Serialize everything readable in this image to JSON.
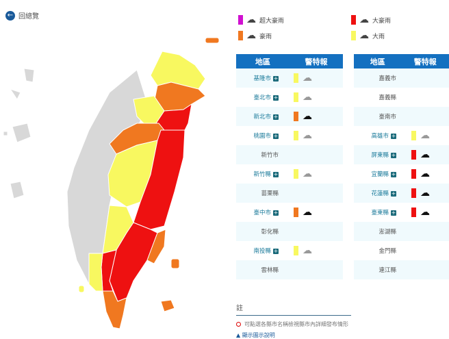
{
  "back_label": "回總覽",
  "colors": {
    "super_torrential": "#d010d0",
    "extremely_heavy": "#ee1111",
    "torrential": "#f07820",
    "heavy": "#f8f860",
    "none": "#d8d8d8",
    "header": "#1470c0"
  },
  "legend": [
    {
      "label": "超大豪雨",
      "level": "super_torrential",
      "icon": "dark-rain-cloud-icon"
    },
    {
      "label": "大豪雨",
      "level": "extremely_heavy",
      "icon": "dark-rain-cloud-icon"
    },
    {
      "label": "豪雨",
      "level": "torrential",
      "icon": "dark-rain-cloud-icon"
    },
    {
      "label": "大雨",
      "level": "heavy",
      "icon": "outline-rain-cloud-icon"
    }
  ],
  "table_headers": {
    "region": "地區",
    "warning": "警特報"
  },
  "left_table": [
    {
      "name": "基隆市",
      "level": "heavy"
    },
    {
      "name": "臺北市",
      "level": "heavy"
    },
    {
      "name": "新北市",
      "level": "torrential"
    },
    {
      "name": "桃園市",
      "level": "heavy"
    },
    {
      "name": "新竹市",
      "level": null
    },
    {
      "name": "新竹縣",
      "level": "heavy"
    },
    {
      "name": "苗栗縣",
      "level": null
    },
    {
      "name": "臺中市",
      "level": "torrential"
    },
    {
      "name": "彰化縣",
      "level": null
    },
    {
      "name": "南投縣",
      "level": "heavy"
    },
    {
      "name": "雲林縣",
      "level": null
    }
  ],
  "right_table": [
    {
      "name": "嘉義市",
      "level": null
    },
    {
      "name": "嘉義縣",
      "level": null
    },
    {
      "name": "臺南市",
      "level": null
    },
    {
      "name": "高雄市",
      "level": "heavy"
    },
    {
      "name": "屏東縣",
      "level": "extremely_heavy"
    },
    {
      "name": "宜蘭縣",
      "level": "extremely_heavy"
    },
    {
      "name": "花蓮縣",
      "level": "extremely_heavy"
    },
    {
      "name": "臺東縣",
      "level": "extremely_heavy"
    },
    {
      "name": "澎湖縣",
      "level": null
    },
    {
      "name": "金門縣",
      "level": null
    },
    {
      "name": "連江縣",
      "level": null
    }
  ],
  "note_title": "註",
  "note_text": "可點選各縣市名稱檢視縣市內詳細發布情形",
  "note_link": "顯示圖示說明"
}
